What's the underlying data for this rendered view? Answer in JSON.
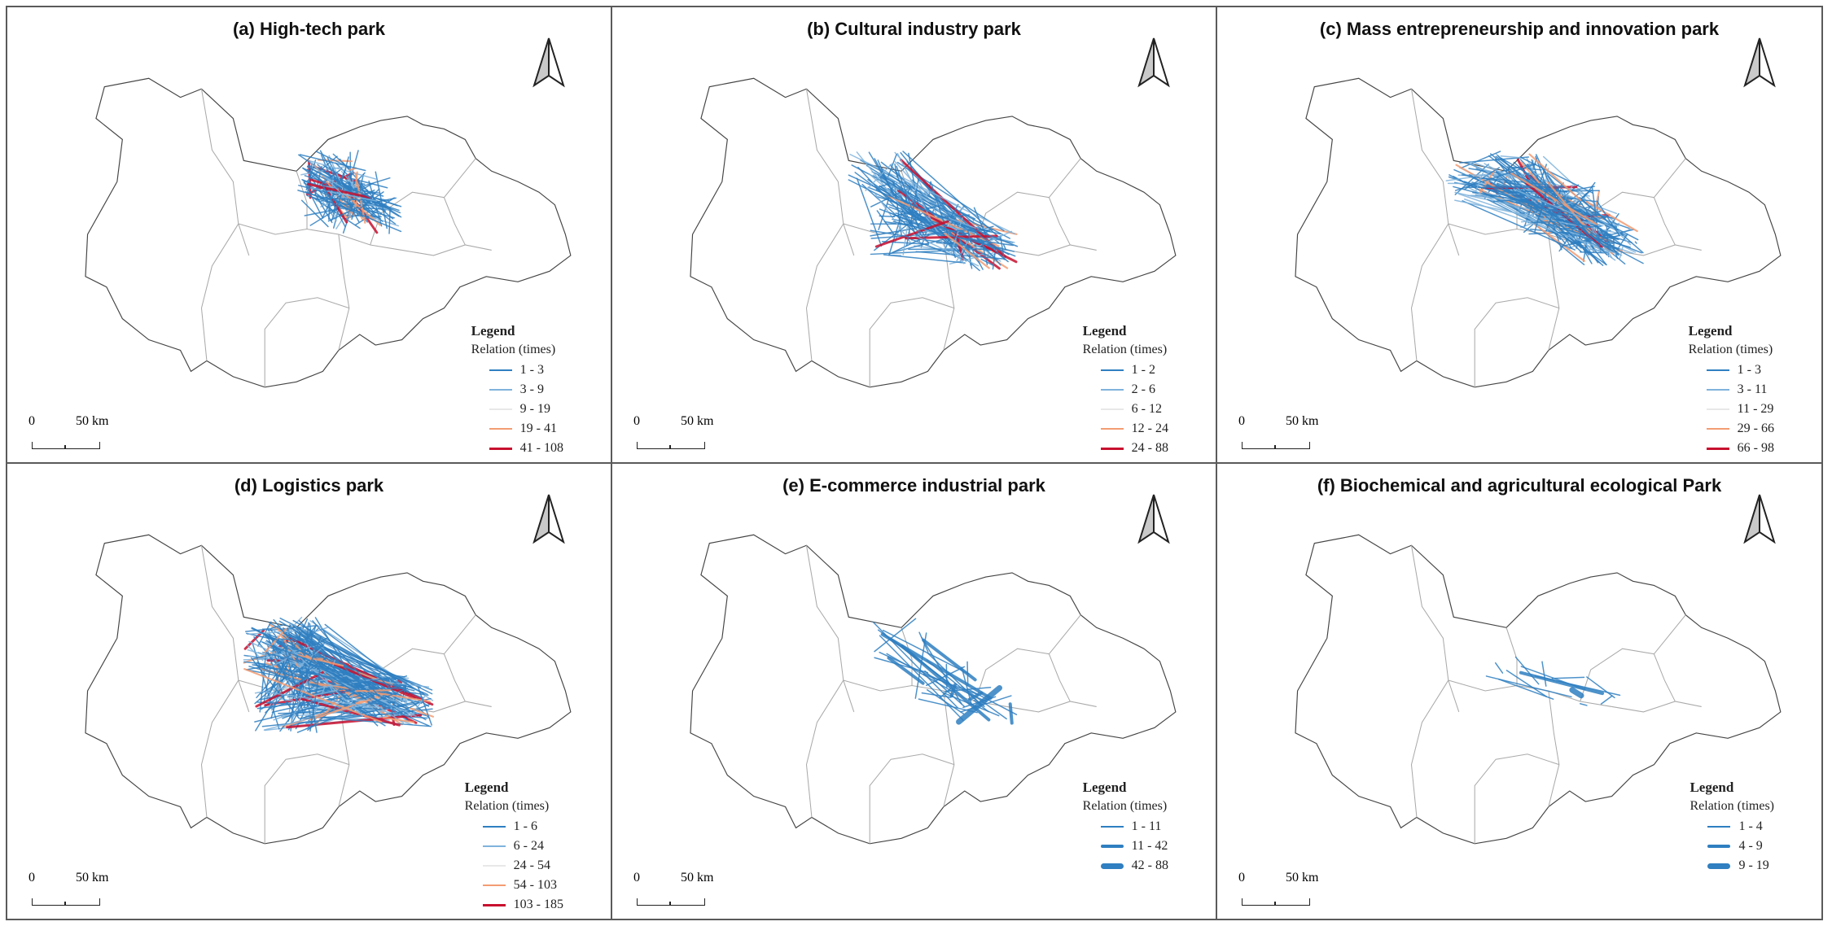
{
  "figure": {
    "legend_heading": "Legend",
    "legend_subtitle": "Relation (times)",
    "scale": {
      "zero": "0",
      "distance": "50 km"
    },
    "north_arrow": "north-arrow-icon"
  },
  "panels": [
    {
      "id": "a",
      "title": "(a) High-tech park",
      "classes": [
        {
          "range": "1 - 3",
          "color": "#2f7fc1",
          "width": 1.5
        },
        {
          "range": "3 - 9",
          "color": "#7fb3dc",
          "width": 1.5
        },
        {
          "range": "9 - 19",
          "color": "#e8e8e8",
          "width": 1.5
        },
        {
          "range": "19 - 41",
          "color": "#f39c73",
          "width": 2.2
        },
        {
          "range": "41 - 108",
          "color": "#c8102e",
          "width": 3
        }
      ]
    },
    {
      "id": "b",
      "title": "(b) Cultural industry park",
      "classes": [
        {
          "range": "1 - 2",
          "color": "#2f7fc1",
          "width": 1.5
        },
        {
          "range": "2 - 6",
          "color": "#7fb3dc",
          "width": 1.5
        },
        {
          "range": "6 - 12",
          "color": "#e8e8e8",
          "width": 1.5
        },
        {
          "range": "12 - 24",
          "color": "#f39c73",
          "width": 2.2
        },
        {
          "range": "24 - 88",
          "color": "#c8102e",
          "width": 3
        }
      ]
    },
    {
      "id": "c",
      "title": "(c) Mass entrepreneurship and innovation park",
      "classes": [
        {
          "range": "1 - 3",
          "color": "#2f7fc1",
          "width": 1.5
        },
        {
          "range": "3 - 11",
          "color": "#7fb3dc",
          "width": 1.5
        },
        {
          "range": "11 - 29",
          "color": "#e8e8e8",
          "width": 1.5
        },
        {
          "range": "29 - 66",
          "color": "#f39c73",
          "width": 2.2
        },
        {
          "range": "66 - 98",
          "color": "#c8102e",
          "width": 3
        }
      ]
    },
    {
      "id": "d",
      "title": "(d) Logistics park",
      "classes": [
        {
          "range": "1 - 6",
          "color": "#2f7fc1",
          "width": 1.5
        },
        {
          "range": "6 - 24",
          "color": "#7fb3dc",
          "width": 1.5
        },
        {
          "range": "24 - 54",
          "color": "#e8e8e8",
          "width": 1.5
        },
        {
          "range": "54 - 103",
          "color": "#f39c73",
          "width": 2.2
        },
        {
          "range": "103 - 185",
          "color": "#c8102e",
          "width": 3
        }
      ]
    },
    {
      "id": "e",
      "title": "(e) E-commerce industrial park",
      "classes": [
        {
          "range": "1 - 11",
          "color": "#2f7fc1",
          "width": 1.5
        },
        {
          "range": "11 - 42",
          "color": "#2f7fc1",
          "width": 4
        },
        {
          "range": "42 - 88",
          "color": "#2f7fc1",
          "width": 7
        }
      ]
    },
    {
      "id": "f",
      "title": "(f) Biochemical and agricultural ecological Park",
      "classes": [
        {
          "range": "1 - 4",
          "color": "#2f7fc1",
          "width": 1.5
        },
        {
          "range": "4 - 9",
          "color": "#2f7fc1",
          "width": 4
        },
        {
          "range": "9 - 19",
          "color": "#2f7fc1",
          "width": 7
        }
      ]
    }
  ]
}
